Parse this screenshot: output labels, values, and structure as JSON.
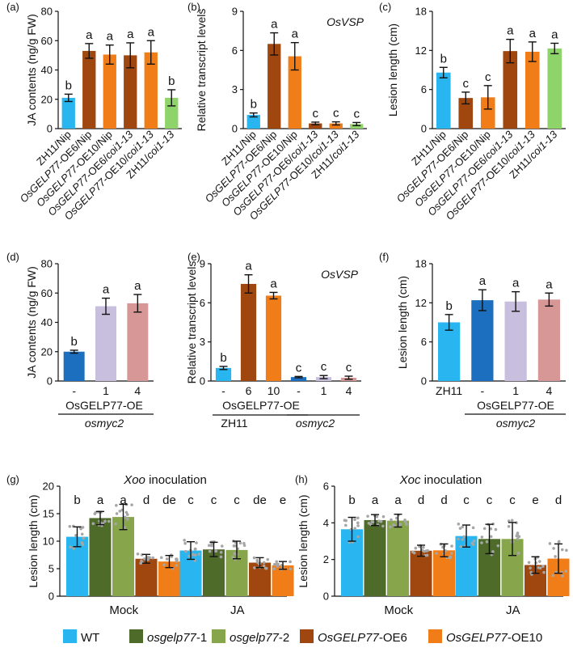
{
  "colors": {
    "blue": "#29b6f0",
    "brown": "#a0470f",
    "orange": "#f07d18",
    "green": "#8fd46a",
    "darkblue": "#1c6fbe",
    "lavender": "#c8bedd",
    "pink": "#d89797",
    "dkgreen": "#4e6b29",
    "ltgreen": "#87a54b",
    "error": "#111111",
    "dot": "#a6a6a6"
  },
  "chart_data": [
    {
      "panel": "(a)",
      "type": "bar",
      "ylabel": "JA contents (ng/g FW)",
      "ylim": [
        0,
        80
      ],
      "yticks": [
        0,
        20,
        40,
        60,
        80
      ],
      "categories": [
        "ZH11/Nip",
        "OsGELP77-OE6/Nip",
        "OsGELP77-OE10/Nip",
        "OsGELP77-OE6/coi1-13",
        "OsGELP77-OE10/coi1-13",
        "ZH11/coi1-13"
      ],
      "values": [
        21,
        53,
        50.5,
        50,
        52,
        21
      ],
      "errors": [
        2.5,
        5,
        6.5,
        8.5,
        8,
        5.5
      ],
      "letters": [
        "b",
        "a",
        "a",
        "a",
        "a",
        "b"
      ],
      "colors": [
        "blue",
        "brown",
        "orange",
        "brown",
        "orange",
        "green"
      ]
    },
    {
      "panel": "(b)",
      "type": "bar",
      "title": "OsVSP",
      "ylabel": "Relative transcript levels",
      "ylim": [
        0,
        9
      ],
      "yticks": [
        0,
        3,
        6,
        9
      ],
      "categories": [
        "ZH11/Nip",
        "OsGELP77-OE6/Nip",
        "OsGELP77-OE10/Nip",
        "OsGELP77-OE6/coi1-13",
        "OsGELP77-OE10/coi1-13",
        "ZH11/coi1-13"
      ],
      "values": [
        1.05,
        6.5,
        5.55,
        0.4,
        0.4,
        0.35
      ],
      "errors": [
        0.15,
        0.85,
        1.05,
        0.1,
        0.12,
        0.12
      ],
      "letters": [
        "b",
        "a",
        "a",
        "c",
        "c",
        "c"
      ],
      "colors": [
        "blue",
        "brown",
        "orange",
        "brown",
        "orange",
        "green"
      ]
    },
    {
      "panel": "(c)",
      "type": "bar",
      "ylabel": "Lesion length (cm)",
      "ylim": [
        0,
        18
      ],
      "yticks": [
        0,
        6,
        12,
        18
      ],
      "categories": [
        "ZH11/Nip",
        "OsGELP77-OE6/Nip",
        "OsGELP77-OE10/Nip",
        "OsGELP77-OE6/coi1-13",
        "OsGELP77-OE10/coi1-13",
        "ZH11/coi1-13"
      ],
      "values": [
        8.6,
        4.7,
        4.8,
        11.9,
        11.8,
        12.3
      ],
      "errors": [
        0.8,
        0.9,
        1.8,
        1.8,
        1.5,
        0.8
      ],
      "letters": [
        "b",
        "c",
        "c",
        "a",
        "a",
        "a"
      ],
      "colors": [
        "blue",
        "brown",
        "orange",
        "brown",
        "orange",
        "green"
      ]
    },
    {
      "panel": "(d)",
      "type": "bar",
      "ylabel": "JA contents (ng/g FW)",
      "ylim": [
        0,
        80
      ],
      "yticks": [
        0,
        20,
        40,
        60,
        80
      ],
      "categories": [
        "-",
        "1",
        "4"
      ],
      "values": [
        20,
        51,
        53
      ],
      "errors": [
        1,
        5.5,
        6
      ],
      "letters": [
        "b",
        "a",
        "a"
      ],
      "colors": [
        "darkblue",
        "lavender",
        "pink"
      ],
      "group_labels": [
        "OsGELP77-OE",
        "osmyc2"
      ]
    },
    {
      "panel": "(e)",
      "type": "bar",
      "title": "OsVSP",
      "ylabel": "Relative transcript levels",
      "ylim": [
        0,
        9
      ],
      "yticks": [
        0,
        3,
        6,
        9
      ],
      "categories": [
        "-",
        "6",
        "10",
        "-",
        "1",
        "4"
      ],
      "values": [
        1,
        7.45,
        6.55,
        0.3,
        0.3,
        0.25
      ],
      "errors": [
        0.12,
        0.7,
        0.25,
        0.05,
        0.12,
        0.12
      ],
      "letters": [
        "b",
        "a",
        "a",
        "c",
        "c",
        "c"
      ],
      "colors": [
        "blue",
        "brown",
        "orange",
        "darkblue",
        "lavender",
        "pink"
      ],
      "group_labels": [
        "OsGELP77-OE",
        "ZH11",
        "osmyc2"
      ]
    },
    {
      "panel": "(f)",
      "type": "bar",
      "ylabel": "Lesion length (cm)",
      "ylim": [
        0,
        18
      ],
      "yticks": [
        0,
        6,
        12,
        18
      ],
      "categories": [
        "ZH11",
        "-",
        "1",
        "4"
      ],
      "values": [
        9,
        12.4,
        12.2,
        12.5
      ],
      "errors": [
        1.2,
        1.6,
        1.5,
        1
      ],
      "letters": [
        "b",
        "a",
        "a",
        "a"
      ],
      "colors": [
        "blue",
        "darkblue",
        "lavender",
        "pink"
      ],
      "group_labels": [
        "OsGELP77-OE",
        "osmyc2"
      ]
    },
    {
      "panel": "(g)",
      "type": "bar",
      "title": "Xoo inoculation",
      "ylabel": "Lesion  length (cm)",
      "ylim": [
        0,
        20
      ],
      "yticks": [
        0,
        5,
        10,
        15,
        20
      ],
      "groups": [
        "Mock",
        "JA"
      ],
      "series": [
        {
          "name": "WT",
          "values": [
            10.8,
            8.3
          ],
          "errors": [
            1.8,
            1.6
          ],
          "letters": [
            "b",
            "c"
          ]
        },
        {
          "name": "osgelp77-1",
          "values": [
            14.2,
            8.5
          ],
          "errors": [
            1.2,
            1.3
          ],
          "letters": [
            "a",
            "c"
          ]
        },
        {
          "name": "osgelp77-2",
          "values": [
            14.4,
            8.4
          ],
          "errors": [
            2.3,
            1.6
          ],
          "letters": [
            "a",
            "c"
          ]
        },
        {
          "name": "OsGELP77-OE6",
          "values": [
            6.8,
            6.1
          ],
          "errors": [
            0.8,
            0.9
          ],
          "letters": [
            "d",
            "de"
          ]
        },
        {
          "name": "OsGELP77-OE10",
          "values": [
            6.3,
            5.6
          ],
          "errors": [
            1.1,
            0.7
          ],
          "letters": [
            "de",
            "e"
          ]
        }
      ]
    },
    {
      "panel": "(h)",
      "type": "bar",
      "title": "Xoc inoculation",
      "ylabel": "Lesion  length (cm)",
      "ylim": [
        0,
        6
      ],
      "yticks": [
        0,
        2,
        4,
        6
      ],
      "groups": [
        "Mock",
        "JA"
      ],
      "series": [
        {
          "name": "WT",
          "values": [
            3.65,
            3.28
          ],
          "errors": [
            0.65,
            0.6
          ],
          "letters": [
            "b",
            "c"
          ]
        },
        {
          "name": "osgelp77-1",
          "values": [
            4.15,
            3.12
          ],
          "errors": [
            0.3,
            0.8
          ],
          "letters": [
            "a",
            "c"
          ]
        },
        {
          "name": "osgelp77-2",
          "values": [
            4.12,
            3.12
          ],
          "errors": [
            0.35,
            0.9
          ],
          "letters": [
            "a",
            "c"
          ]
        },
        {
          "name": "OsGELP77-OE6",
          "values": [
            2.48,
            1.7
          ],
          "errors": [
            0.3,
            0.45
          ],
          "letters": [
            "d",
            "e"
          ]
        },
        {
          "name": "OsGELP77-OE10",
          "values": [
            2.5,
            2.05
          ],
          "errors": [
            0.35,
            0.8
          ],
          "letters": [
            "d",
            "d"
          ]
        }
      ]
    }
  ],
  "legend": [
    {
      "label": "WT",
      "color": "blue"
    },
    {
      "label": "osgelp77-1",
      "color": "dkgreen"
    },
    {
      "label": "osgelp77-2",
      "color": "ltgreen"
    },
    {
      "label": "OsGELP77-OE6",
      "color": "brown"
    },
    {
      "label": "OsGELP77-OE10",
      "color": "orange"
    }
  ]
}
